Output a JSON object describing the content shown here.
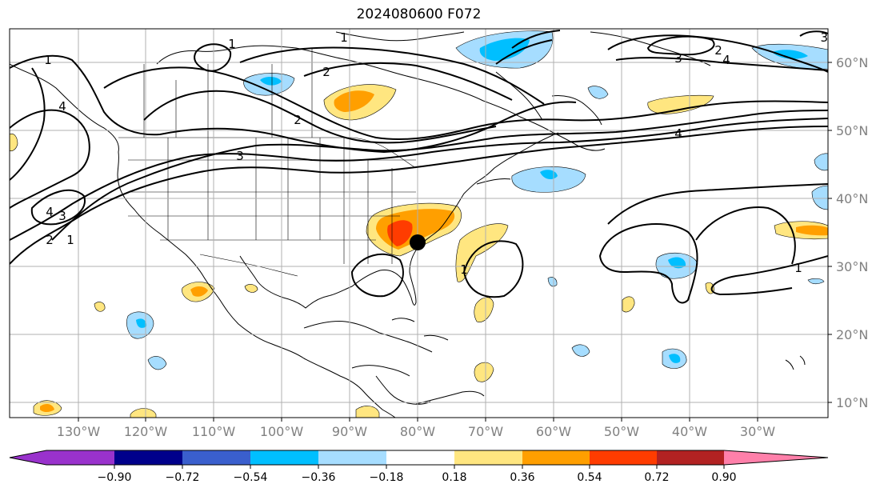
{
  "title": "2024080600 F072",
  "map": {
    "lon_labels": [
      "130°W",
      "120°W",
      "110°W",
      "100°W",
      "90°W",
      "80°W",
      "70°W",
      "60°W",
      "50°W",
      "40°W",
      "30°W"
    ],
    "lat_labels": [
      "60°N",
      "50°N",
      "40°N",
      "30°N",
      "20°N",
      "10°N"
    ],
    "contour_labels": [
      "1",
      "2",
      "3",
      "4",
      "1",
      "2",
      "3",
      "4",
      "1",
      "2",
      "3",
      "1",
      "2",
      "3",
      "4",
      "1",
      "4",
      "1"
    ],
    "marker": "storm-center-dot"
  },
  "colorbar": {
    "ticks": [
      "−0.90",
      "−0.72",
      "−0.54",
      "−0.36",
      "−0.18",
      "0.18",
      "0.36",
      "0.54",
      "0.72",
      "0.90"
    ],
    "colors": [
      "#9932cc",
      "#00008b",
      "#3a5fcd",
      "#00bfff",
      "#a6ddff",
      "#ffffff",
      "#ffe680",
      "#ff9f00",
      "#ff3c00",
      "#b22222",
      "#ff80aa"
    ]
  }
}
